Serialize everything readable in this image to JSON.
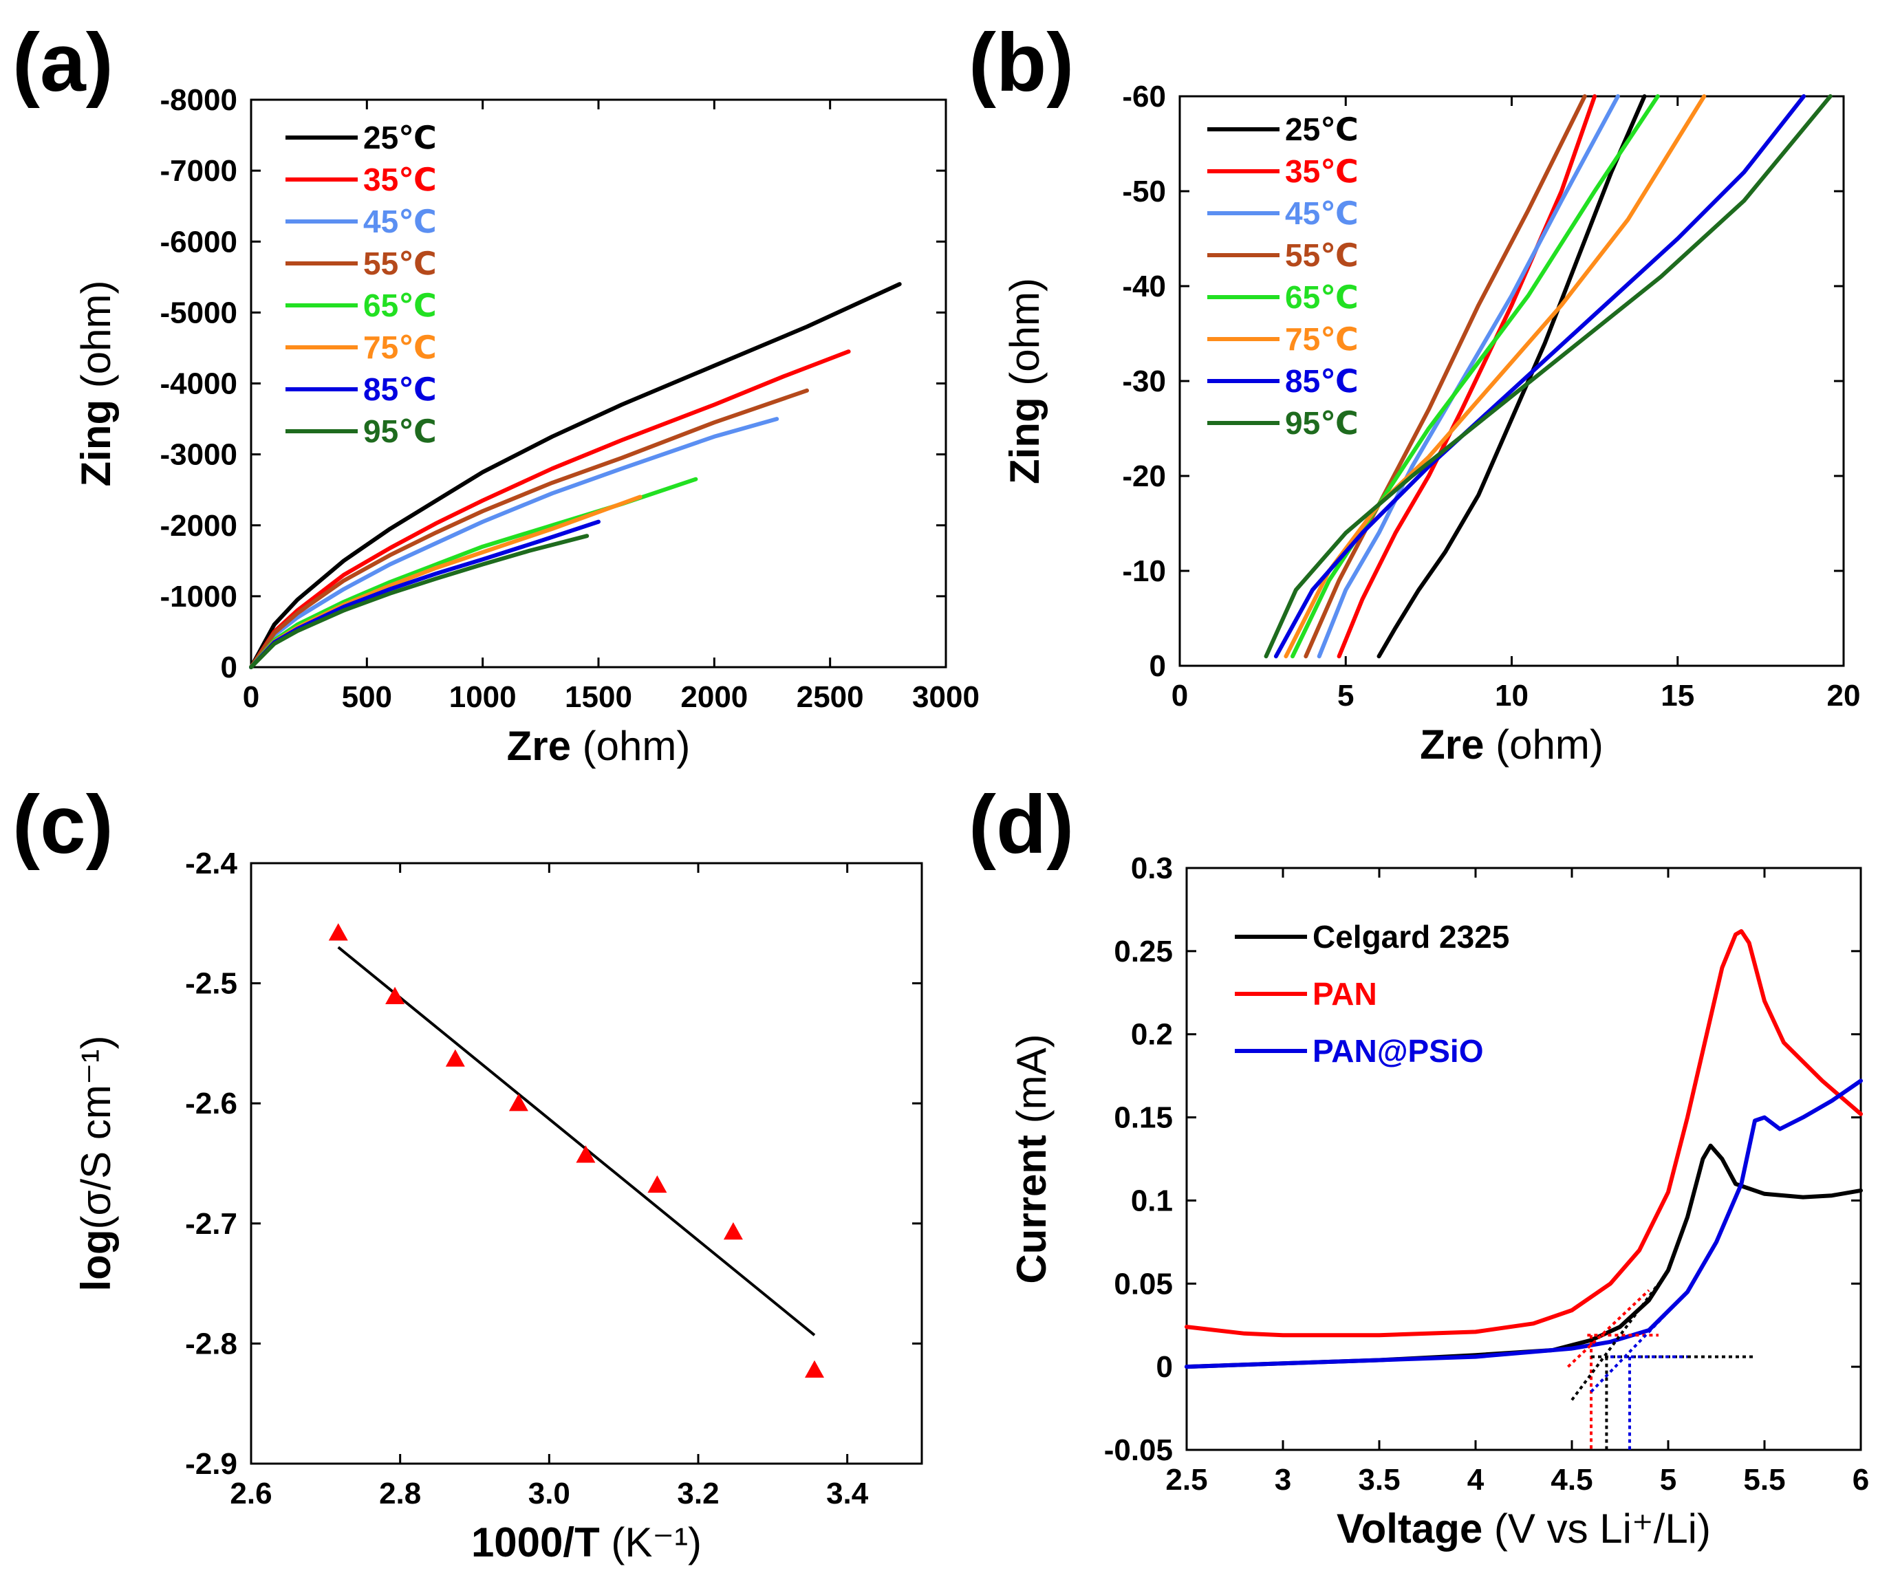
{
  "panels": {
    "a": {
      "label": "(a)"
    },
    "b": {
      "label": "(b)"
    },
    "c": {
      "label": "(c)"
    },
    "d": {
      "label": "(d)"
    }
  },
  "chart_data": [
    {
      "id": "a",
      "type": "line",
      "xlabel": {
        "bold": "Zre",
        "normal": " (ohm)"
      },
      "ylabel": {
        "bold": "Zing",
        "normal": " (ohm)"
      },
      "xlim": [
        0,
        3000
      ],
      "ylim": [
        0,
        -8000
      ],
      "xticks": [
        0,
        500,
        1000,
        1500,
        2000,
        2500,
        3000
      ],
      "xticklabels": [
        "0",
        "500",
        "1000",
        "1500",
        "2000",
        "2500",
        "3000"
      ],
      "yticks": [
        0,
        -1000,
        -2000,
        -3000,
        -4000,
        -5000,
        -6000,
        -7000,
        -8000
      ],
      "yticklabels": [
        "0",
        "-1000",
        "-2000",
        "-3000",
        "-4000",
        "-5000",
        "-6000",
        "-7000",
        "-8000"
      ],
      "legend_position": "top-left",
      "series": [
        {
          "name": "25℃",
          "color": "#000000",
          "x": [
            0,
            100,
            200,
            400,
            600,
            800,
            1000,
            1300,
            1600,
            2000,
            2400,
            2800
          ],
          "y": [
            0,
            -600,
            -950,
            -1500,
            -1950,
            -2350,
            -2750,
            -3250,
            -3700,
            -4250,
            -4800,
            -5400
          ]
        },
        {
          "name": "35℃",
          "color": "#ff0000",
          "x": [
            0,
            100,
            200,
            400,
            600,
            800,
            1000,
            1300,
            1600,
            2000,
            2300,
            2580
          ],
          "y": [
            0,
            -500,
            -800,
            -1300,
            -1680,
            -2030,
            -2350,
            -2800,
            -3200,
            -3700,
            -4100,
            -4450
          ]
        },
        {
          "name": "45℃",
          "color": "#5b8ff2",
          "x": [
            0,
            100,
            200,
            400,
            600,
            800,
            1000,
            1300,
            1600,
            2000,
            2270
          ],
          "y": [
            0,
            -450,
            -700,
            -1100,
            -1450,
            -1750,
            -2050,
            -2450,
            -2800,
            -3250,
            -3500
          ]
        },
        {
          "name": "55℃",
          "color": "#b5491b",
          "x": [
            0,
            100,
            200,
            400,
            600,
            800,
            1000,
            1300,
            1600,
            2000,
            2400
          ],
          "y": [
            0,
            -480,
            -760,
            -1220,
            -1580,
            -1900,
            -2200,
            -2600,
            -2950,
            -3450,
            -3900
          ]
        },
        {
          "name": "65℃",
          "color": "#22e022",
          "x": [
            0,
            100,
            200,
            400,
            600,
            800,
            1000,
            1300,
            1600,
            1920
          ],
          "y": [
            0,
            -380,
            -600,
            -920,
            -1200,
            -1450,
            -1700,
            -2000,
            -2300,
            -2650
          ]
        },
        {
          "name": "75℃",
          "color": "#ff8c1a",
          "x": [
            0,
            100,
            200,
            400,
            600,
            800,
            1000,
            1300,
            1680
          ],
          "y": [
            0,
            -360,
            -560,
            -880,
            -1150,
            -1400,
            -1620,
            -1950,
            -2400
          ]
        },
        {
          "name": "85℃",
          "color": "#0000e0",
          "x": [
            0,
            100,
            200,
            400,
            600,
            800,
            1000,
            1250,
            1500
          ],
          "y": [
            0,
            -350,
            -540,
            -850,
            -1100,
            -1320,
            -1520,
            -1780,
            -2050
          ]
        },
        {
          "name": "95℃",
          "color": "#1e6b1e",
          "x": [
            0,
            100,
            200,
            400,
            600,
            800,
            1000,
            1200,
            1450
          ],
          "y": [
            0,
            -330,
            -510,
            -800,
            -1040,
            -1250,
            -1450,
            -1640,
            -1850
          ]
        }
      ]
    },
    {
      "id": "b",
      "type": "line",
      "xlabel": {
        "bold": "Zre",
        "normal": " (ohm)"
      },
      "ylabel": {
        "bold": "Zing",
        "normal": " (ohm)"
      },
      "xlim": [
        0,
        20
      ],
      "ylim": [
        0,
        -60
      ],
      "xticks": [
        0,
        5,
        10,
        15,
        20
      ],
      "xticklabels": [
        "0",
        "5",
        "10",
        "15",
        "20"
      ],
      "yticks": [
        0,
        -10,
        -20,
        -30,
        -40,
        -50,
        -60
      ],
      "yticklabels": [
        "0",
        "-10",
        "-20",
        "-30",
        "-40",
        "-50",
        "-60"
      ],
      "legend_position": "top-left",
      "series": [
        {
          "name": "25℃",
          "color": "#000000",
          "x": [
            6.0,
            6.5,
            7.2,
            8.0,
            9.0,
            10.0,
            11.0,
            12.0,
            13.0,
            14.0
          ],
          "y": [
            -1,
            -4,
            -8,
            -12,
            -18,
            -26,
            -34,
            -43,
            -52,
            -60
          ]
        },
        {
          "name": "35℃",
          "color": "#ff0000",
          "x": [
            4.8,
            5.5,
            6.5,
            7.5,
            8.5,
            10.0,
            11.5,
            12.5
          ],
          "y": [
            -1,
            -7,
            -14,
            -20,
            -27,
            -38,
            -50,
            -60
          ]
        },
        {
          "name": "45℃",
          "color": "#5b8ff2",
          "x": [
            4.2,
            5.0,
            6.0,
            7.0,
            8.5,
            10.0,
            11.5,
            13.2
          ],
          "y": [
            -1,
            -8,
            -14,
            -21,
            -30,
            -39,
            -49,
            -60
          ]
        },
        {
          "name": "55℃",
          "color": "#b5491b",
          "x": [
            3.8,
            4.8,
            6.0,
            7.5,
            9.0,
            10.5,
            12.2
          ],
          "y": [
            -1,
            -9,
            -17,
            -27,
            -38,
            -48,
            -60
          ]
        },
        {
          "name": "65℃",
          "color": "#22e022",
          "x": [
            3.4,
            4.5,
            6.0,
            7.5,
            9.0,
            10.5,
            12.5,
            14.4
          ],
          "y": [
            -1,
            -9,
            -17,
            -25,
            -32,
            -39,
            -50,
            -60
          ]
        },
        {
          "name": "75℃",
          "color": "#ff8c1a",
          "x": [
            3.2,
            4.5,
            6.0,
            7.5,
            9.5,
            11.5,
            13.5,
            15.8
          ],
          "y": [
            -1,
            -10,
            -17,
            -22,
            -30,
            -38,
            -47,
            -60
          ]
        },
        {
          "name": "85℃",
          "color": "#0000e0",
          "x": [
            2.9,
            4.0,
            5.5,
            7.5,
            10.0,
            12.5,
            15.0,
            17.0,
            18.8
          ],
          "y": [
            -1,
            -8,
            -14,
            -21,
            -29,
            -37,
            -45,
            -52,
            -60
          ]
        },
        {
          "name": "95℃",
          "color": "#1e6b1e",
          "x": [
            2.6,
            3.5,
            5.0,
            7.0,
            9.5,
            12.0,
            14.5,
            17.0,
            19.6
          ],
          "y": [
            -1,
            -8,
            -14,
            -20,
            -27,
            -34,
            -41,
            -49,
            -60
          ]
        }
      ]
    },
    {
      "id": "c",
      "type": "scatter",
      "xlabel": {
        "bold": "1000/T",
        "normal": " (K⁻¹)"
      },
      "ylabel": {
        "bold": "log",
        "normal": "(σ/S cm⁻¹)"
      },
      "xlim": [
        2.6,
        3.5
      ],
      "ylim": [
        -2.9,
        -2.4
      ],
      "xticks": [
        2.6,
        2.8,
        3.0,
        3.2,
        3.4
      ],
      "xticklabels": [
        "2.6",
        "2.8",
        "3.0",
        "3.2",
        "3.4"
      ],
      "yticks": [
        -2.4,
        -2.5,
        -2.6,
        -2.7,
        -2.8,
        -2.9
      ],
      "yticklabels": [
        "-2.4",
        "-2.5",
        "-2.6",
        "-2.7",
        "-2.8",
        "-2.9"
      ],
      "points": {
        "color": "#ff0000",
        "marker": "triangle",
        "x": [
          2.717,
          2.793,
          2.874,
          2.959,
          3.049,
          3.145,
          3.247,
          3.356
        ],
        "y": [
          -2.458,
          -2.511,
          -2.563,
          -2.6,
          -2.643,
          -2.668,
          -2.707,
          -2.822
        ]
      },
      "fit": {
        "color": "#000000",
        "x": [
          2.717,
          3.356
        ],
        "y": [
          -2.47,
          -2.793
        ]
      }
    },
    {
      "id": "d",
      "type": "line",
      "xlabel": {
        "bold": "Voltage",
        "normal": " (V vs Li⁺/Li)"
      },
      "ylabel": {
        "bold": "Current",
        "normal": " (mA)"
      },
      "xlim": [
        2.5,
        6
      ],
      "ylim": [
        -0.05,
        0.3
      ],
      "xticks": [
        2.5,
        3,
        3.5,
        4,
        4.5,
        5,
        5.5,
        6
      ],
      "xticklabels": [
        "2.5",
        "3",
        "3.5",
        "4",
        "4.5",
        "5",
        "5.5",
        "6"
      ],
      "yticks": [
        -0.05,
        0,
        0.05,
        0.1,
        0.15,
        0.2,
        0.25,
        0.3
      ],
      "yticklabels": [
        "-0.05",
        "0",
        "0.05",
        "0.1",
        "0.15",
        "0.2",
        "0.25",
        "0.3"
      ],
      "legend_position": "top-left",
      "series": [
        {
          "name": "Celgard 2325",
          "color": "#000000",
          "x": [
            2.5,
            3.0,
            3.5,
            4.0,
            4.4,
            4.6,
            4.75,
            4.9,
            5.0,
            5.1,
            5.18,
            5.22,
            5.28,
            5.35,
            5.5,
            5.7,
            5.85,
            6.0
          ],
          "y": [
            0.0,
            0.002,
            0.004,
            0.007,
            0.01,
            0.016,
            0.024,
            0.04,
            0.058,
            0.09,
            0.125,
            0.133,
            0.125,
            0.11,
            0.104,
            0.102,
            0.103,
            0.106
          ]
        },
        {
          "name": "PAN",
          "color": "#ff0000",
          "x": [
            2.5,
            2.8,
            3.0,
            3.5,
            4.0,
            4.3,
            4.5,
            4.7,
            4.85,
            5.0,
            5.1,
            5.2,
            5.28,
            5.35,
            5.38,
            5.42,
            5.5,
            5.6,
            5.8,
            6.0
          ],
          "y": [
            0.024,
            0.02,
            0.019,
            0.019,
            0.021,
            0.026,
            0.034,
            0.05,
            0.07,
            0.105,
            0.15,
            0.2,
            0.24,
            0.26,
            0.262,
            0.255,
            0.22,
            0.195,
            0.172,
            0.152
          ]
        },
        {
          "name": "PAN@PSiO",
          "color": "#0000e0",
          "x": [
            2.5,
            3.0,
            3.5,
            4.0,
            4.5,
            4.7,
            4.9,
            5.1,
            5.25,
            5.38,
            5.45,
            5.5,
            5.58,
            5.7,
            5.85,
            6.0
          ],
          "y": [
            0.0,
            0.002,
            0.004,
            0.006,
            0.011,
            0.015,
            0.022,
            0.045,
            0.075,
            0.11,
            0.148,
            0.15,
            0.143,
            0.15,
            0.16,
            0.172
          ]
        }
      ],
      "tangents": [
        {
          "color": "#ff0000",
          "x": [
            4.48,
            4.9
          ],
          "y": [
            -0.0,
            0.046
          ],
          "hline_y": 0.019,
          "hline_x": [
            4.58,
            4.95
          ],
          "vline_x": 4.6
        },
        {
          "color": "#000000",
          "x": [
            4.5,
            4.95
          ],
          "y": [
            -0.02,
            0.05
          ],
          "hline_y": 0.006,
          "hline_x": [
            4.6,
            5.45
          ],
          "vline_x": 4.68
        },
        {
          "color": "#0000e0",
          "x": [
            4.6,
            5.1
          ],
          "y": [
            -0.015,
            0.045
          ],
          "hline_y": 0.006,
          "hline_x": [
            4.7,
            5.1
          ],
          "vline_x": 4.8
        }
      ]
    }
  ]
}
